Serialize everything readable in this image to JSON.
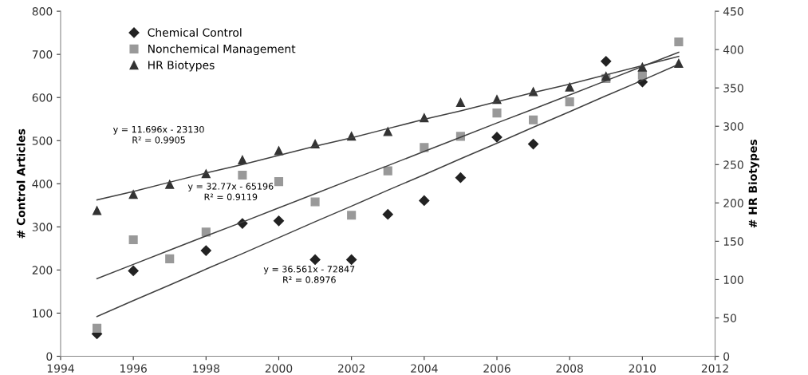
{
  "chart_data": {
    "type": "scatter",
    "ylabel": "# Control Articles",
    "y2label": "# HR Biotypes",
    "x": [
      1995,
      1996,
      1997,
      1998,
      1999,
      2000,
      2001,
      2002,
      2003,
      2004,
      2005,
      2006,
      2007,
      2008,
      2009,
      2010,
      2011
    ],
    "xlim": [
      1994,
      2012
    ],
    "xticks": [
      1994,
      1996,
      1998,
      2000,
      2002,
      2004,
      2006,
      2008,
      2010,
      2012
    ],
    "ylim": [
      0,
      800
    ],
    "yticks": [
      0,
      100,
      200,
      300,
      400,
      500,
      600,
      700,
      800
    ],
    "y2lim": [
      0,
      450
    ],
    "y2ticks": [
      0,
      50,
      100,
      150,
      200,
      250,
      300,
      350,
      400,
      450
    ],
    "grid": false,
    "legend": "top left",
    "series": [
      {
        "name": "Chemical Control",
        "color": "#222222",
        "marker": "diamond",
        "values": [
          52,
          198,
          null,
          245,
          308,
          314,
          224,
          224,
          329,
          361,
          414,
          508,
          492,
          null,
          684,
          636,
          null
        ]
      },
      {
        "name": "Nonchemical Management",
        "color": "#999999",
        "marker": "square",
        "values": [
          65,
          270,
          226,
          288,
          420,
          405,
          358,
          327,
          430,
          484,
          510,
          564,
          548,
          590,
          644,
          652,
          729
        ]
      },
      {
        "name": "HR Biotypes",
        "color": "#333333",
        "marker": "triangle",
        "axis": "y2",
        "values": [
          190,
          211,
          224,
          238,
          256,
          268,
          277,
          287,
          293,
          311,
          331,
          335,
          345,
          351,
          365,
          377,
          382
        ]
      },
      {
        "type": "line",
        "color": "#404040",
        "marker": "none",
        "values": [
          92,
          129,
          165,
          202,
          238,
          275,
          312,
          348,
          385,
          421,
          458,
          494,
          531,
          567,
          604,
          640,
          677
        ]
      },
      {
        "type": "line",
        "color": "#404040",
        "marker": "none",
        "values": [
          180,
          213,
          246,
          279,
          311,
          344,
          377,
          410,
          442,
          475,
          508,
          541,
          573,
          606,
          639,
          672,
          705
        ]
      },
      {
        "type": "line",
        "color": "#404040",
        "marker": "none",
        "axis": "y2",
        "values": [
          204,
          215,
          227,
          239,
          250,
          262,
          274,
          285,
          297,
          309,
          320,
          332,
          344,
          355,
          367,
          379,
          391
        ]
      }
    ],
    "annotations": [
      "y = 11.696x - 23130\nR² = 0.9905",
      "y = 32.77x - 65196\nR² = 0.9119",
      "y = 36.561x - 72847\nR² = 0.8976"
    ]
  }
}
